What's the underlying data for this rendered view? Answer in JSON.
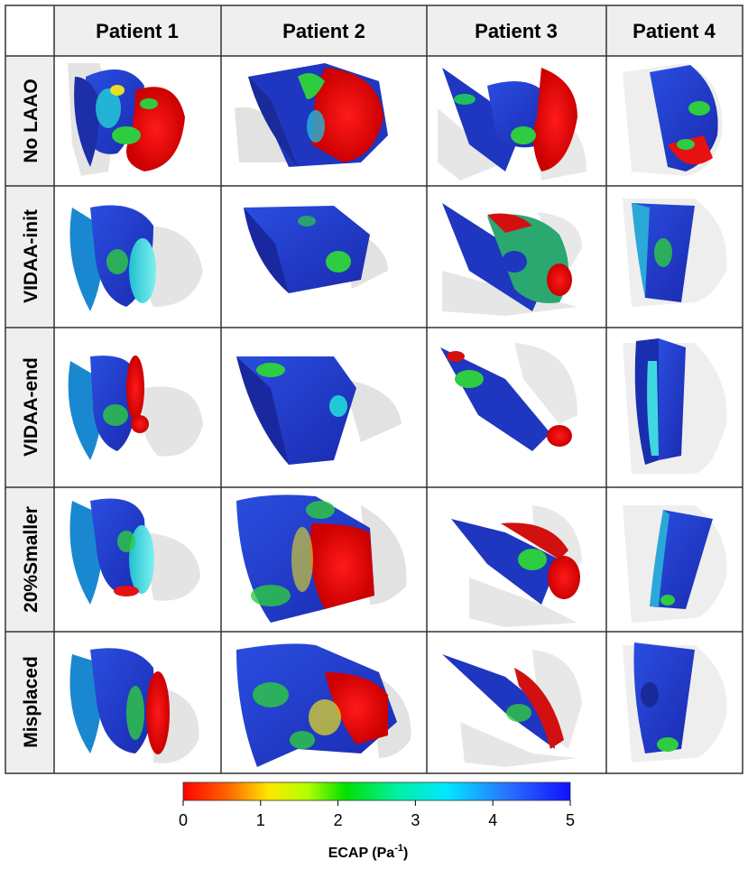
{
  "columns": [
    "Patient 1",
    "Patient 2",
    "Patient 3",
    "Patient 4"
  ],
  "rows": [
    "No LAAO",
    "VIDAA-init",
    "VIDAA-end",
    "20%Smaller",
    "Misplaced"
  ],
  "colorbar": {
    "label": "ECAP (Pa",
    "label_sup": "-1",
    "label_end": ")",
    "ticks": [
      "0",
      "1",
      "2",
      "3",
      "4",
      "5"
    ],
    "min": 0,
    "max": 5,
    "colors": [
      "#ff0000",
      "#ff7a00",
      "#ffee00",
      "#a8ff00",
      "#00e000",
      "#00ffb0",
      "#00e0ff",
      "#2a6bff",
      "#1010ff"
    ]
  },
  "palette": {
    "header_bg": "#f0f0f0",
    "grid": "#333333",
    "background_tissue": "#dddddd",
    "blue": "#1f3cc8",
    "green": "#2ecc40",
    "cyan": "#40d8e0",
    "red": "#e81010",
    "yellow": "#e8e020"
  }
}
